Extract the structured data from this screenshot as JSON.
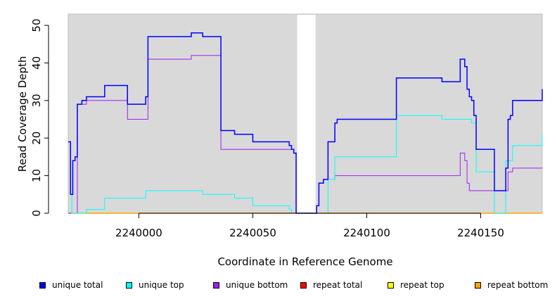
{
  "chart_data": {
    "type": "line",
    "xlabel": "Coordinate in Reference Genome",
    "ylabel": "Read Coverage Depth",
    "xlim": [
      2239969,
      2240177
    ],
    "ylim": [
      0,
      53
    ],
    "xticks": [
      2240000,
      2240050,
      2240100,
      2240150
    ],
    "yticks": [
      0,
      10,
      20,
      30,
      40,
      50
    ],
    "background": "#d9d9d9",
    "gap": [
      2240069,
      2240078
    ],
    "series": [
      {
        "name": "unique total",
        "color": "#0000ff",
        "points": [
          [
            2239969,
            19
          ],
          [
            2239970,
            19
          ],
          [
            2239970,
            5
          ],
          [
            2239971,
            5
          ],
          [
            2239971,
            14
          ],
          [
            2239972,
            14
          ],
          [
            2239972,
            15
          ],
          [
            2239973,
            15
          ],
          [
            2239973,
            29
          ],
          [
            2239975,
            29
          ],
          [
            2239975,
            30
          ],
          [
            2239977,
            30
          ],
          [
            2239977,
            31
          ],
          [
            2239985,
            31
          ],
          [
            2239985,
            34
          ],
          [
            2239995,
            34
          ],
          [
            2239995,
            29
          ],
          [
            2240003,
            29
          ],
          [
            2240003,
            31
          ],
          [
            2240004,
            31
          ],
          [
            2240004,
            47
          ],
          [
            2240023,
            47
          ],
          [
            2240023,
            48
          ],
          [
            2240028,
            48
          ],
          [
            2240028,
            47
          ],
          [
            2240036,
            47
          ],
          [
            2240036,
            22
          ],
          [
            2240042,
            22
          ],
          [
            2240042,
            21
          ],
          [
            2240050,
            21
          ],
          [
            2240050,
            19
          ],
          [
            2240066,
            19
          ],
          [
            2240066,
            18
          ],
          [
            2240067,
            18
          ],
          [
            2240067,
            17
          ],
          [
            2240068,
            17
          ],
          [
            2240068,
            16
          ],
          [
            2240069,
            16
          ],
          [
            2240069,
            0
          ],
          [
            2240078,
            0
          ],
          [
            2240078,
            2
          ],
          [
            2240079,
            2
          ],
          [
            2240079,
            8
          ],
          [
            2240081,
            8
          ],
          [
            2240081,
            9
          ],
          [
            2240083,
            9
          ],
          [
            2240083,
            19
          ],
          [
            2240086,
            19
          ],
          [
            2240086,
            24
          ],
          [
            2240087,
            24
          ],
          [
            2240087,
            25
          ],
          [
            2240113,
            25
          ],
          [
            2240113,
            36
          ],
          [
            2240133,
            36
          ],
          [
            2240133,
            35
          ],
          [
            2240141,
            35
          ],
          [
            2240141,
            41
          ],
          [
            2240143,
            41
          ],
          [
            2240143,
            39
          ],
          [
            2240144,
            39
          ],
          [
            2240144,
            33
          ],
          [
            2240145,
            33
          ],
          [
            2240145,
            31
          ],
          [
            2240146,
            31
          ],
          [
            2240146,
            30
          ],
          [
            2240147,
            30
          ],
          [
            2240147,
            26
          ],
          [
            2240148,
            26
          ],
          [
            2240148,
            17
          ],
          [
            2240156,
            17
          ],
          [
            2240156,
            6
          ],
          [
            2240161,
            6
          ],
          [
            2240161,
            12
          ],
          [
            2240162,
            12
          ],
          [
            2240162,
            25
          ],
          [
            2240163,
            25
          ],
          [
            2240163,
            26
          ],
          [
            2240164,
            26
          ],
          [
            2240164,
            30
          ],
          [
            2240177,
            30
          ],
          [
            2240177,
            33
          ]
        ]
      },
      {
        "name": "unique top",
        "color": "#00ffff",
        "points": [
          [
            2239969,
            19
          ],
          [
            2239970,
            19
          ],
          [
            2239970,
            5
          ],
          [
            2239970.6,
            5
          ],
          [
            2239970.6,
            0
          ],
          [
            2239977,
            0
          ],
          [
            2239977,
            1
          ],
          [
            2239985,
            1
          ],
          [
            2239985,
            4
          ],
          [
            2240003,
            4
          ],
          [
            2240003,
            6
          ],
          [
            2240028,
            6
          ],
          [
            2240028,
            5
          ],
          [
            2240042,
            5
          ],
          [
            2240042,
            4
          ],
          [
            2240050,
            4
          ],
          [
            2240050,
            2
          ],
          [
            2240066,
            2
          ],
          [
            2240066,
            1
          ],
          [
            2240067,
            1
          ],
          [
            2240067,
            0
          ],
          [
            2240083,
            0
          ],
          [
            2240083,
            9
          ],
          [
            2240086,
            9
          ],
          [
            2240086,
            15
          ],
          [
            2240113,
            15
          ],
          [
            2240113,
            26
          ],
          [
            2240133,
            26
          ],
          [
            2240133,
            25
          ],
          [
            2240146,
            25
          ],
          [
            2240146,
            24
          ],
          [
            2240148,
            24
          ],
          [
            2240148,
            11
          ],
          [
            2240156,
            11
          ],
          [
            2240156,
            0
          ],
          [
            2240161,
            0
          ],
          [
            2240161,
            14
          ],
          [
            2240164,
            14
          ],
          [
            2240164,
            18
          ],
          [
            2240177,
            18
          ],
          [
            2240177,
            21
          ]
        ]
      },
      {
        "name": "unique bottom",
        "color": "#a020f0",
        "points": [
          [
            2239969,
            0
          ],
          [
            2239973,
            0
          ],
          [
            2239973,
            29
          ],
          [
            2239977,
            29
          ],
          [
            2239977,
            30
          ],
          [
            2239995,
            30
          ],
          [
            2239995,
            25
          ],
          [
            2240004,
            25
          ],
          [
            2240004,
            41
          ],
          [
            2240023,
            41
          ],
          [
            2240023,
            42
          ],
          [
            2240036,
            42
          ],
          [
            2240036,
            17
          ],
          [
            2240068,
            17
          ],
          [
            2240068,
            16
          ],
          [
            2240069,
            16
          ],
          [
            2240069,
            0
          ],
          [
            2240078,
            0
          ],
          [
            2240078,
            2
          ],
          [
            2240079,
            2
          ],
          [
            2240079,
            8
          ],
          [
            2240081,
            8
          ],
          [
            2240081,
            9
          ],
          [
            2240086,
            9
          ],
          [
            2240086,
            10
          ],
          [
            2240141,
            10
          ],
          [
            2240141,
            16
          ],
          [
            2240143,
            16
          ],
          [
            2240143,
            14
          ],
          [
            2240144,
            14
          ],
          [
            2240144,
            8
          ],
          [
            2240145,
            8
          ],
          [
            2240145,
            6
          ],
          [
            2240162,
            6
          ],
          [
            2240162,
            11
          ],
          [
            2240164,
            11
          ],
          [
            2240164,
            12
          ],
          [
            2240177,
            12
          ]
        ]
      },
      {
        "name": "repeat total",
        "color": "#ff0000",
        "points": []
      },
      {
        "name": "repeat top",
        "color": "#ffff00",
        "points": []
      },
      {
        "name": "repeat bottom",
        "color": "#ffa500",
        "points": [
          [
            2239969,
            0
          ],
          [
            2240177,
            0
          ]
        ]
      }
    ]
  }
}
